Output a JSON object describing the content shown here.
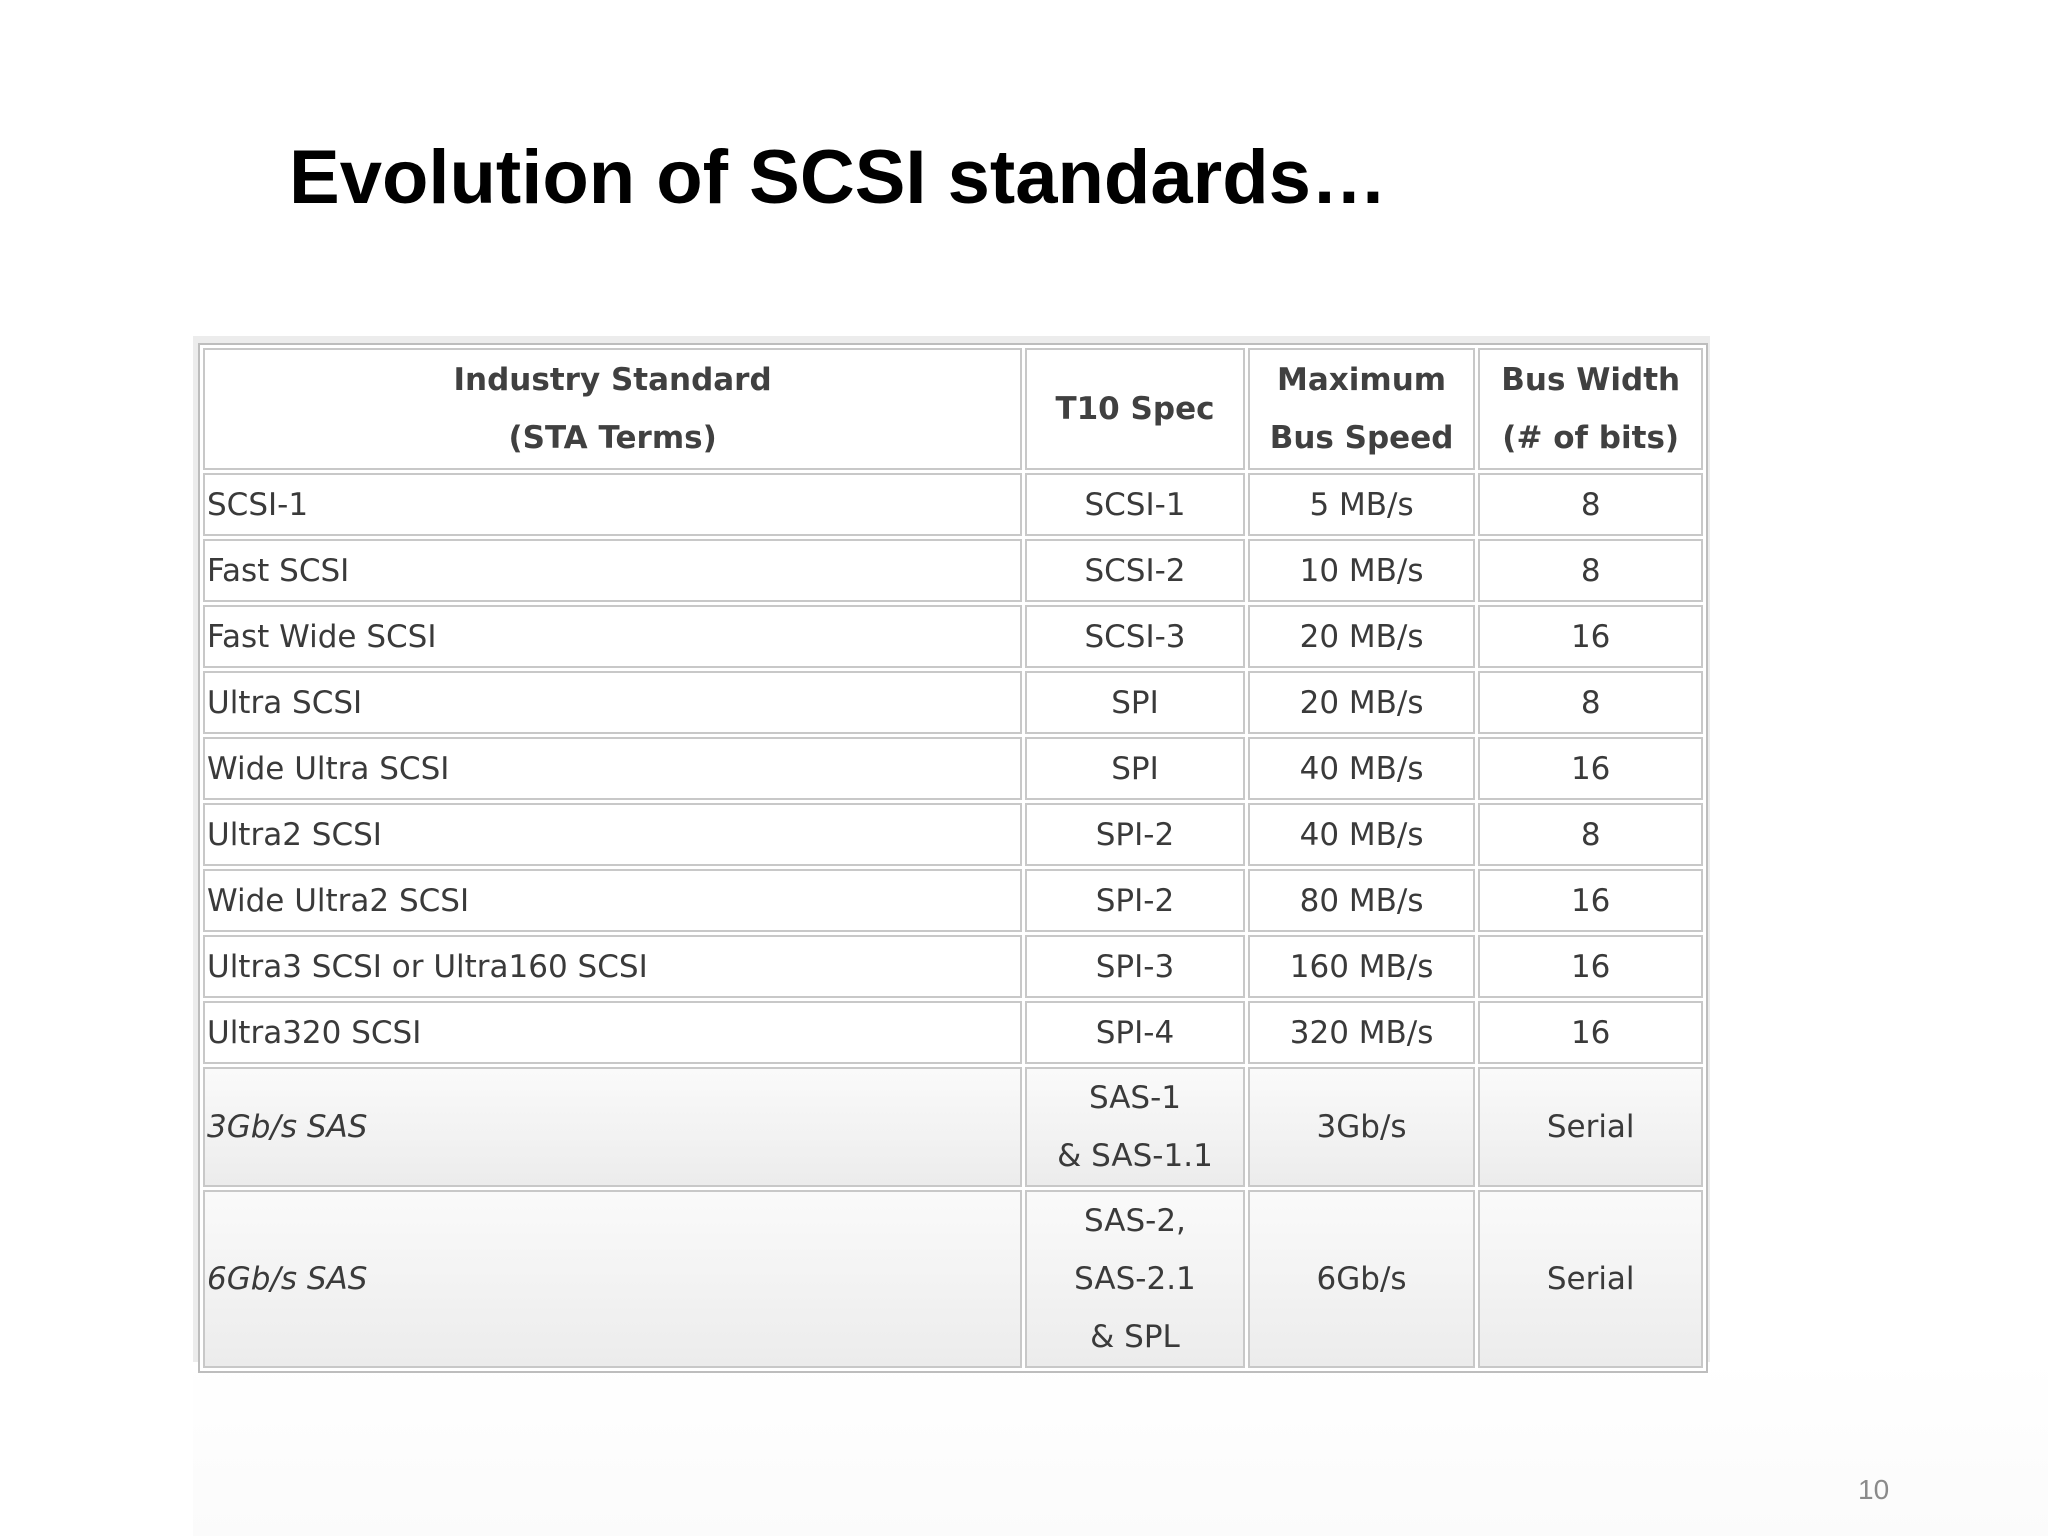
{
  "slide": {
    "title": "Evolution of SCSI standards…",
    "page_number": "10"
  },
  "table": {
    "headers": {
      "standard_line1": "Industry Standard",
      "standard_line2": "(STA Terms)",
      "spec": "T10 Spec",
      "speed_line1": "Maximum",
      "speed_line2": "Bus Speed",
      "width_line1": "Bus Width",
      "width_line2": "(# of bits)"
    },
    "rows": [
      {
        "standard": "SCSI-1",
        "spec": "SCSI-1",
        "speed": "5 MB/s",
        "width": "8"
      },
      {
        "standard": "Fast SCSI",
        "spec": "SCSI-2",
        "speed": "10 MB/s",
        "width": "8"
      },
      {
        "standard": "Fast Wide SCSI",
        "spec": "SCSI-3",
        "speed": "20 MB/s",
        "width": "16"
      },
      {
        "standard": "Ultra SCSI",
        "spec": "SPI",
        "speed": "20 MB/s",
        "width": "8"
      },
      {
        "standard": "Wide Ultra SCSI",
        "spec": "SPI",
        "speed": "40 MB/s",
        "width": "16"
      },
      {
        "standard": "Ultra2 SCSI",
        "spec": "SPI-2",
        "speed": "40 MB/s",
        "width": "8"
      },
      {
        "standard": "Wide Ultra2 SCSI",
        "spec": "SPI-2",
        "speed": "80 MB/s",
        "width": "16"
      },
      {
        "standard": "Ultra3 SCSI or Ultra160 SCSI",
        "spec": "SPI-3",
        "speed": "160 MB/s",
        "width": "16"
      },
      {
        "standard": "Ultra320 SCSI",
        "spec": "SPI-4",
        "speed": "320 MB/s",
        "width": "16"
      }
    ],
    "sas_rows": [
      {
        "standard": "3Gb/s SAS",
        "spec_lines": [
          "SAS-1",
          "& SAS-1.1"
        ],
        "speed": "3Gb/s",
        "width": "Serial"
      },
      {
        "standard": "6Gb/s SAS",
        "spec_lines": [
          "SAS-2,",
          "SAS-2.1",
          "& SPL"
        ],
        "speed": "6Gb/s",
        "width": "Serial"
      }
    ]
  }
}
